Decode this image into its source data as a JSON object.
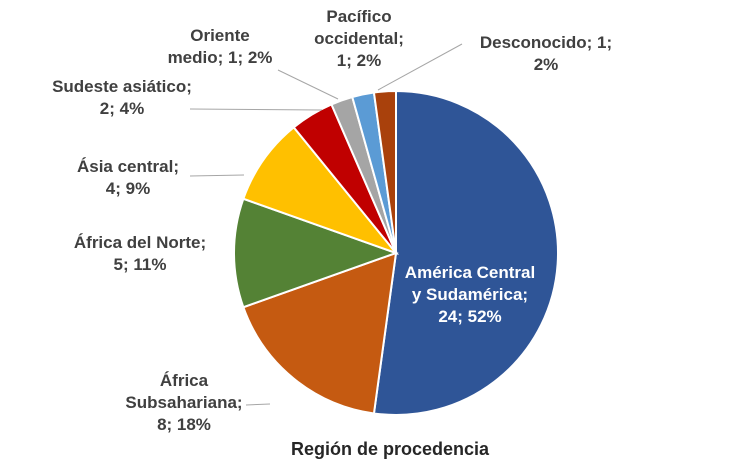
{
  "chart_data": {
    "type": "pie",
    "title": "",
    "xlabel": "Región de procedencia",
    "legend": "none",
    "slices": [
      {
        "name": "América Central y Sudamérica",
        "value": 24,
        "percent": 52,
        "color": "#2F5597",
        "label_lines": [
          "América Central",
          "y Sudamérica;",
          "24; 52%"
        ],
        "label_color": "#ffffff"
      },
      {
        "name": "África Subsahariana",
        "value": 8,
        "percent": 18,
        "color": "#C55A11",
        "label_lines": [
          "África",
          "Subsahariana;",
          "8; 18%"
        ],
        "label_color": "#404040"
      },
      {
        "name": "África del Norte",
        "value": 5,
        "percent": 11,
        "color": "#548235",
        "label_lines": [
          "África del Norte;",
          "5; 11%"
        ],
        "label_color": "#404040"
      },
      {
        "name": "Ásia central",
        "value": 4,
        "percent": 9,
        "color": "#FFC000",
        "label_lines": [
          "Ásia central;",
          "4; 9%"
        ],
        "label_color": "#404040"
      },
      {
        "name": "Sudeste asiático",
        "value": 2,
        "percent": 4,
        "color": "#C00000",
        "label_lines": [
          "Sudeste asiático;",
          "2; 4%"
        ],
        "label_color": "#404040"
      },
      {
        "name": "Oriente medio",
        "value": 1,
        "percent": 2,
        "color": "#A5A5A5",
        "label_lines": [
          "Oriente",
          "medio; 1; 2%"
        ],
        "label_color": "#404040"
      },
      {
        "name": "Pacífico occidental",
        "value": 1,
        "percent": 2,
        "color": "#5B9BD5",
        "label_lines": [
          "Pacífico",
          "occidental;",
          "1; 2%"
        ],
        "label_color": "#404040"
      },
      {
        "name": "Desconocido",
        "value": 1,
        "percent": 2,
        "color": "#A9410C",
        "label_lines": [
          "Desconocido; 1;",
          "2%"
        ],
        "label_color": "#404040"
      }
    ]
  }
}
